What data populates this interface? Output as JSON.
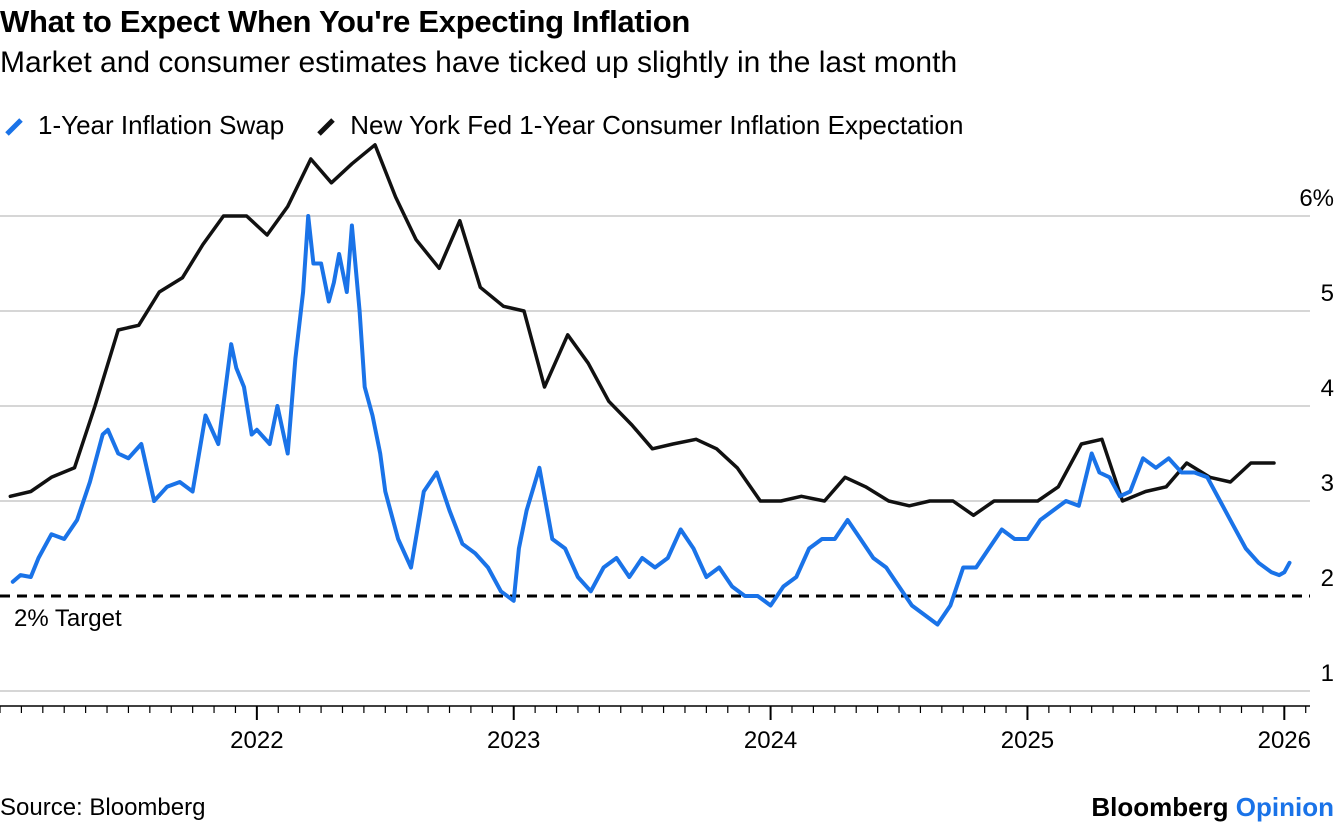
{
  "chart_data": {
    "type": "line",
    "title": "What to Expect When You're Expecting Inflation",
    "subtitle": "Market and consumer estimates have ticked up slightly in the last month",
    "xlabel": "",
    "ylabel": "",
    "xlim": [
      2021.0,
      2026.1
    ],
    "ylim": [
      0.8,
      6.8
    ],
    "yticks": [
      1,
      2,
      3,
      4,
      5,
      6
    ],
    "ytick_labels": [
      "1",
      "2",
      "3",
      "4",
      "5",
      "6%"
    ],
    "xticks": [
      2022,
      2023,
      2024,
      2025,
      2026
    ],
    "xtick_labels": [
      "2022",
      "2023",
      "2024",
      "2025",
      "2026"
    ],
    "grid": "horizontal",
    "legend_position": "top-left",
    "annotations": [
      {
        "text": "2% Target",
        "x": 2021.0,
        "y": 2.0
      }
    ],
    "reference_line": {
      "y": 2.0,
      "style": "dashed",
      "label": "2% Target"
    },
    "series": [
      {
        "name": "1-Year Inflation Swap",
        "color": "#1a73e8",
        "x": [
          2021.05,
          2021.08,
          2021.12,
          2021.15,
          2021.2,
          2021.25,
          2021.3,
          2021.35,
          2021.4,
          2021.42,
          2021.46,
          2021.5,
          2021.55,
          2021.6,
          2021.65,
          2021.7,
          2021.75,
          2021.8,
          2021.85,
          2021.9,
          2021.92,
          2021.95,
          2021.98,
          2022.0,
          2022.05,
          2022.08,
          2022.12,
          2022.15,
          2022.18,
          2022.2,
          2022.22,
          2022.25,
          2022.28,
          2022.3,
          2022.32,
          2022.35,
          2022.37,
          2022.4,
          2022.42,
          2022.45,
          2022.48,
          2022.5,
          2022.55,
          2022.6,
          2022.65,
          2022.7,
          2022.75,
          2022.8,
          2022.85,
          2022.9,
          2022.95,
          2023.0,
          2023.02,
          2023.05,
          2023.1,
          2023.15,
          2023.2,
          2023.25,
          2023.3,
          2023.35,
          2023.4,
          2023.45,
          2023.5,
          2023.55,
          2023.6,
          2023.65,
          2023.7,
          2023.75,
          2023.8,
          2023.85,
          2023.9,
          2023.95,
          2024.0,
          2024.05,
          2024.1,
          2024.15,
          2024.2,
          2024.25,
          2024.3,
          2024.35,
          2024.4,
          2024.45,
          2024.5,
          2024.55,
          2024.6,
          2024.65,
          2024.7,
          2024.75,
          2024.8,
          2024.85,
          2024.9,
          2024.95,
          2025.0,
          2025.05,
          2025.1,
          2025.15,
          2025.2,
          2025.25,
          2025.28,
          2025.32,
          2025.36,
          2025.4,
          2025.45,
          2025.5,
          2025.55,
          2025.6,
          2025.65,
          2025.7,
          2025.75,
          2025.8,
          2025.85,
          2025.9,
          2025.95,
          2025.98,
          2026.0,
          2026.02
        ],
        "values": [
          2.15,
          2.22,
          2.2,
          2.4,
          2.65,
          2.6,
          2.8,
          3.2,
          3.7,
          3.75,
          3.5,
          3.45,
          3.6,
          3.0,
          3.15,
          3.2,
          3.1,
          3.9,
          3.6,
          4.65,
          4.4,
          4.2,
          3.7,
          3.75,
          3.6,
          4.0,
          3.5,
          4.5,
          5.2,
          6.0,
          5.5,
          5.5,
          5.1,
          5.3,
          5.6,
          5.2,
          5.9,
          5.0,
          4.2,
          3.9,
          3.5,
          3.1,
          2.6,
          2.3,
          3.1,
          3.3,
          2.9,
          2.55,
          2.45,
          2.3,
          2.05,
          1.95,
          2.5,
          2.9,
          3.35,
          2.6,
          2.5,
          2.2,
          2.05,
          2.3,
          2.4,
          2.2,
          2.4,
          2.3,
          2.4,
          2.7,
          2.5,
          2.2,
          2.3,
          2.1,
          2.0,
          2.0,
          1.9,
          2.1,
          2.2,
          2.5,
          2.6,
          2.6,
          2.8,
          2.6,
          2.4,
          2.3,
          2.1,
          1.9,
          1.8,
          1.7,
          1.9,
          2.3,
          2.3,
          2.5,
          2.7,
          2.6,
          2.6,
          2.8,
          2.9,
          3.0,
          2.95,
          3.5,
          3.3,
          3.25,
          3.05,
          3.1,
          3.45,
          3.35,
          3.45,
          3.3,
          3.3,
          3.25,
          3.0,
          2.75,
          2.5,
          2.35,
          2.25,
          2.22,
          2.25,
          2.35
        ]
      },
      {
        "name": "New York Fed 1-Year Consumer Inflation Expectation",
        "color": "#111111",
        "x": [
          2021.04,
          2021.12,
          2021.2,
          2021.29,
          2021.37,
          2021.46,
          2021.54,
          2021.62,
          2021.71,
          2021.79,
          2021.87,
          2021.96,
          2022.04,
          2022.12,
          2022.21,
          2022.29,
          2022.37,
          2022.46,
          2022.54,
          2022.62,
          2022.71,
          2022.79,
          2022.87,
          2022.96,
          2023.04,
          2023.12,
          2023.21,
          2023.29,
          2023.37,
          2023.46,
          2023.54,
          2023.62,
          2023.71,
          2023.79,
          2023.87,
          2023.96,
          2024.04,
          2024.12,
          2024.21,
          2024.29,
          2024.37,
          2024.46,
          2024.54,
          2024.62,
          2024.71,
          2024.79,
          2024.87,
          2024.96,
          2025.04,
          2025.12,
          2025.21,
          2025.29,
          2025.37,
          2025.46,
          2025.54,
          2025.62,
          2025.71,
          2025.79,
          2025.87,
          2025.96
        ],
        "values": [
          3.05,
          3.1,
          3.25,
          3.35,
          4.0,
          4.8,
          4.85,
          5.2,
          5.35,
          5.7,
          6.0,
          6.0,
          5.8,
          6.1,
          6.6,
          6.35,
          6.55,
          6.75,
          6.2,
          5.75,
          5.45,
          5.95,
          5.25,
          5.05,
          5.0,
          4.2,
          4.75,
          4.45,
          4.05,
          3.8,
          3.55,
          3.6,
          3.65,
          3.55,
          3.35,
          3.0,
          3.0,
          3.05,
          3.0,
          3.25,
          3.15,
          3.0,
          2.95,
          3.0,
          3.0,
          2.85,
          3.0,
          3.0,
          3.0,
          3.15,
          3.6,
          3.65,
          3.0,
          3.1,
          3.15,
          3.4,
          3.25,
          3.2,
          3.4,
          3.4
        ]
      }
    ]
  },
  "legend": {
    "items": [
      {
        "label": "1-Year Inflation Swap",
        "color": "#1a73e8"
      },
      {
        "label": "New York Fed 1-Year Consumer Inflation Expectation",
        "color": "#111111"
      }
    ]
  },
  "footer": {
    "source": "Source: Bloomberg",
    "brand_name": "Bloomberg",
    "brand_section": "Opinion"
  },
  "colors": {
    "accent": "#1a73e8",
    "series_dark": "#111111",
    "grid": "#c8c8c8"
  }
}
